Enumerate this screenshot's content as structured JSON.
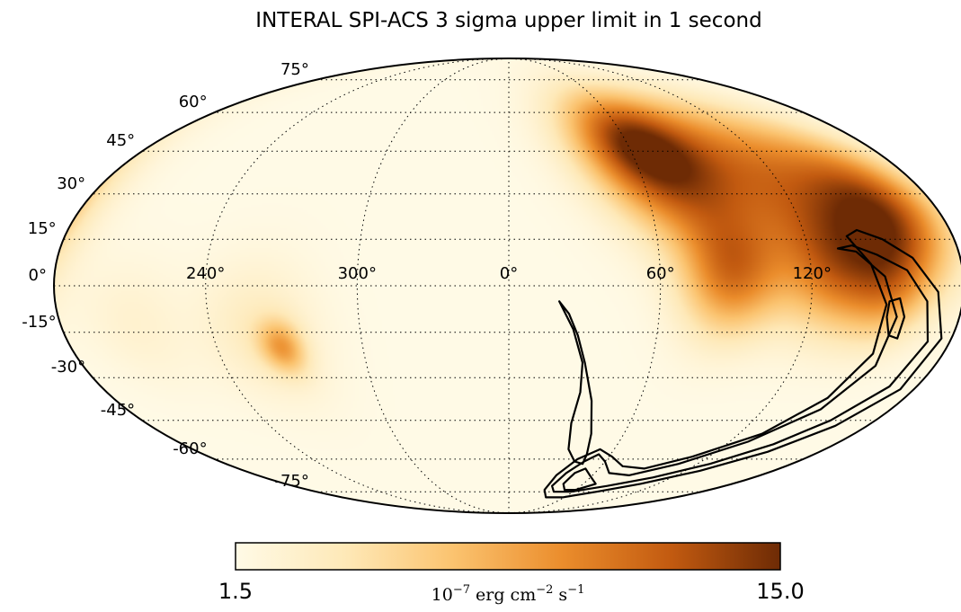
{
  "chart_data": {
    "type": "heatmap",
    "projection": "mollweide",
    "title": "INTERAL SPI-ACS 3 sigma upper limit in 1 second",
    "colorbar": {
      "min_label": "1.5",
      "max_label": "15.0",
      "min": 1.5,
      "max": 15.0,
      "unit_base": "10",
      "unit_exp1": "−7",
      "unit_erg": " erg cm",
      "unit_exp2": "−2",
      "unit_s": " s",
      "unit_exp3": "−1",
      "colormap": [
        "#fffae6",
        "#fee9b8",
        "#fbc36f",
        "#eb8d2c",
        "#c25a10",
        "#6e2b05"
      ]
    },
    "lat_labels": [
      "75°",
      "60°",
      "45°",
      "30°",
      "15°",
      "0°",
      "-15°",
      "-30°",
      "-45°",
      "-60°",
      "-75°"
    ],
    "lat_values": [
      75,
      60,
      45,
      30,
      15,
      0,
      -15,
      -30,
      -45,
      -60,
      -75
    ],
    "lon_labels": [
      "120°",
      "60°",
      "0°",
      "300°",
      "240°"
    ],
    "lon_values": [
      120,
      60,
      0,
      -60,
      -120
    ],
    "hotspots": [
      {
        "lon": 155,
        "lat": 22,
        "value": 13.0,
        "sigma": 16
      },
      {
        "lon": 115,
        "lat": 35,
        "value": 9.5,
        "sigma": 20
      },
      {
        "lon": 72,
        "lat": 38,
        "value": 10.5,
        "sigma": 16
      },
      {
        "lon": 58,
        "lat": 50,
        "value": 8.5,
        "sigma": 13
      },
      {
        "lon": 88,
        "lat": 4,
        "value": 10.0,
        "sigma": 14
      },
      {
        "lon": 128,
        "lat": 5,
        "value": 8.0,
        "sigma": 14
      },
      {
        "lon": 150,
        "lat": -2,
        "value": 6.0,
        "sigma": 12
      },
      {
        "lon": -93,
        "lat": -20,
        "value": 7.2,
        "sigma": 6
      },
      {
        "lon": -100,
        "lat": -15,
        "value": 3.8,
        "sigma": 16
      },
      {
        "lon": -150,
        "lat": -12,
        "value": 2.8,
        "sigma": 14
      }
    ],
    "contours": [
      [
        [
          132,
          12
        ],
        [
          138,
          13
        ],
        [
          147,
          10
        ],
        [
          158,
          5
        ],
        [
          166,
          -5
        ],
        [
          171,
          -18
        ],
        [
          168,
          -33
        ],
        [
          158,
          -45
        ],
        [
          146,
          -54
        ],
        [
          128,
          -62
        ],
        [
          106,
          -68
        ],
        [
          82,
          -72
        ],
        [
          58,
          -75
        ],
        [
          42,
          -75
        ],
        [
          36,
          -72
        ],
        [
          40,
          -66
        ],
        [
          47,
          -61
        ],
        [
          53,
          -58
        ],
        [
          60,
          -61
        ],
        [
          70,
          -66
        ],
        [
          86,
          -67
        ],
        [
          108,
          -62
        ],
        [
          130,
          -53
        ],
        [
          147,
          -41
        ],
        [
          155,
          -26
        ],
        [
          155,
          -10
        ],
        [
          149,
          3
        ],
        [
          139,
          11
        ],
        [
          132,
          12
        ]
      ],
      [
        [
          137,
          16
        ],
        [
          142,
          18
        ],
        [
          151,
          15
        ],
        [
          161,
          9
        ],
        [
          170,
          -2
        ],
        [
          176,
          -17
        ],
        [
          174,
          -34
        ],
        [
          164,
          -47
        ],
        [
          150,
          -57
        ],
        [
          130,
          -65
        ],
        [
          106,
          -71
        ],
        [
          82,
          -75
        ],
        [
          58,
          -78
        ],
        [
          40,
          -78
        ],
        [
          32,
          -74
        ],
        [
          34,
          -67
        ],
        [
          42,
          -60
        ],
        [
          52,
          -56
        ],
        [
          62,
          -59
        ],
        [
          74,
          -63
        ],
        [
          90,
          -64
        ],
        [
          110,
          -59
        ],
        [
          132,
          -50
        ],
        [
          145,
          -37
        ],
        [
          151,
          -22
        ],
        [
          150,
          -6
        ],
        [
          144,
          7
        ],
        [
          137,
          16
        ]
      ],
      [
        [
          151,
          -5
        ],
        [
          155,
          -4
        ],
        [
          158,
          -10
        ],
        [
          158,
          -17
        ],
        [
          154,
          -16
        ],
        [
          151,
          -10
        ],
        [
          151,
          -5
        ]
      ],
      [
        [
          70,
          -71
        ],
        [
          60,
          -74
        ],
        [
          50,
          -74
        ],
        [
          44,
          -71
        ],
        [
          46,
          -66
        ],
        [
          51,
          -64
        ],
        [
          58,
          -67
        ],
        [
          70,
          -71
        ]
      ],
      [
        [
          20,
          -5
        ],
        [
          24,
          -9
        ],
        [
          28,
          -16
        ],
        [
          32,
          -25
        ],
        [
          38,
          -38
        ],
        [
          43,
          -50
        ],
        [
          46,
          -58
        ],
        [
          47,
          -62
        ],
        [
          41,
          -61
        ],
        [
          34,
          -56
        ],
        [
          31,
          -46
        ],
        [
          32,
          -35
        ],
        [
          31,
          -25
        ],
        [
          26,
          -14
        ],
        [
          20,
          -5
        ]
      ]
    ]
  }
}
